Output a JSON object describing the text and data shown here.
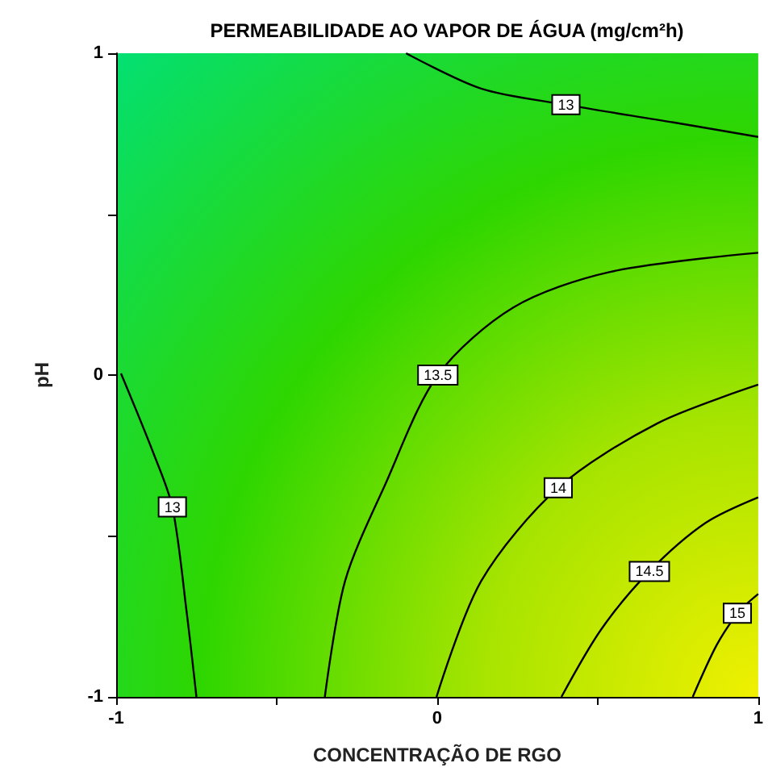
{
  "chart_data": {
    "type": "line",
    "title": "PERMEABILIDADE AO VAPOR DE ÁGUA (mg/cm²h)",
    "xlabel": "CONCENTRAÇÃO DE RGO",
    "ylabel": "pH",
    "xlim": [
      -1,
      1
    ],
    "ylim": [
      -1,
      1
    ],
    "xticks": [
      -1,
      {
        "value": -0.5,
        "label": null
      },
      0,
      {
        "value": 0.5,
        "label": null
      },
      1
    ],
    "yticks": [
      -1,
      {
        "value": -0.5,
        "label": null
      },
      0,
      {
        "value": 0.5,
        "label": null
      },
      1
    ],
    "grid": false,
    "legend": false,
    "marker": "none",
    "line_style": "solid",
    "series": [
      {
        "name": "13",
        "color": "#000000",
        "x": [
          -0.097,
          0.137,
          0.401,
          0.736,
          1.0
        ],
        "values": [
          1.0,
          0.89,
          0.84,
          0.785,
          0.74
        ]
      },
      {
        "name": "13",
        "color": "#000000",
        "x": [
          -0.985,
          -0.885,
          -0.825,
          -0.78,
          -0.75
        ],
        "values": [
          0.005,
          -0.24,
          -0.41,
          -0.74,
          -1.0
        ]
      },
      {
        "name": "13.5",
        "color": "#000000",
        "x": [
          -0.35,
          -0.287,
          -0.162,
          0.002,
          0.237,
          0.536,
          1.0
        ],
        "values": [
          -1.0,
          -0.64,
          -0.34,
          0.0,
          0.21,
          0.32,
          0.38
        ]
      },
      {
        "name": "14",
        "color": "#000000",
        "x": [
          -0.002,
          0.137,
          0.377,
          0.686,
          1.0
        ],
        "values": [
          -1.0,
          -0.64,
          -0.35,
          -0.15,
          -0.03
        ]
      },
      {
        "name": "14.5",
        "color": "#000000",
        "x": [
          0.387,
          0.511,
          0.661,
          0.835,
          1.0
        ],
        "values": [
          -1.0,
          -0.79,
          -0.61,
          -0.46,
          -0.38
        ]
      },
      {
        "name": "15",
        "color": "#000000",
        "x": [
          0.796,
          0.87,
          0.935,
          0.965,
          1.0
        ],
        "values": [
          -1.0,
          -0.84,
          -0.74,
          -0.71,
          -0.68
        ]
      }
    ]
  }
}
